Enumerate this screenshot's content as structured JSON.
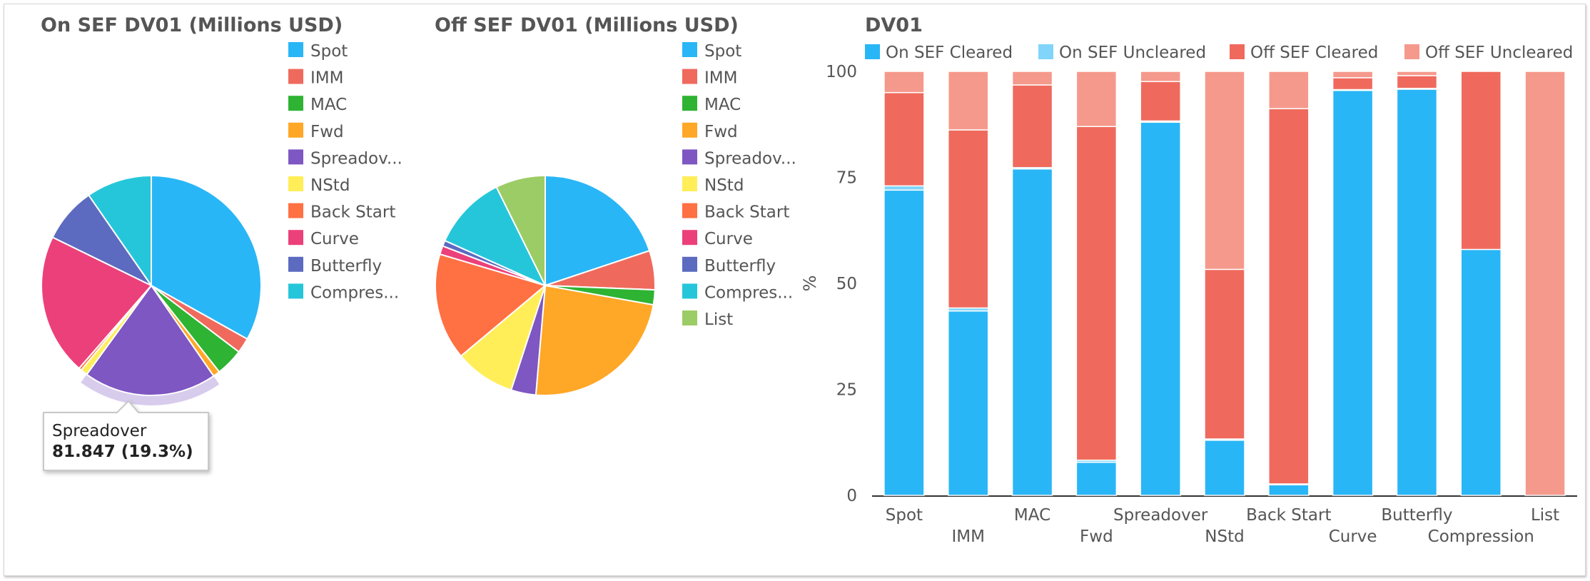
{
  "colors": {
    "Spot": "#29b6f6",
    "IMM": "#ef6a5d",
    "MAC": "#2eb333",
    "Fwd": "#ffa726",
    "Spreadover": "#7e57c2",
    "NStd": "#ffee58",
    "Back Start": "#ff7043",
    "Curve": "#ec407a",
    "Butterfly": "#5c6bc0",
    "Compression": "#26c6da",
    "List": "#9ccc65",
    "On SEF Cleared": "#29b6f6",
    "On SEF Uncleared": "#81d4fa",
    "Off SEF Cleared": "#ef6a5d",
    "Off SEF Uncleared": "#f5998c"
  },
  "on_sef": {
    "title": "On SEF DV01 (Millions USD)",
    "legend": [
      "Spot",
      "IMM",
      "MAC",
      "Fwd",
      "Spreadov...",
      "NStd",
      "Back Start",
      "Curve",
      "Butterfly",
      "Compres..."
    ],
    "tooltip": {
      "name": "Spreadover",
      "value": "81.847 (19.3%)"
    }
  },
  "off_sef": {
    "title": "Off SEF DV01 (Millions USD)",
    "legend": [
      "Spot",
      "IMM",
      "MAC",
      "Fwd",
      "Spreadov...",
      "NStd",
      "Back Start",
      "Curve",
      "Butterfly",
      "Compres...",
      "List"
    ]
  },
  "dv01": {
    "title": "DV01",
    "legend": [
      "On SEF Cleared",
      "On SEF Uncleared",
      "Off SEF Cleared",
      "Off SEF Uncleared"
    ]
  },
  "chart_data": [
    {
      "type": "pie",
      "title": "On SEF DV01 (Millions USD)",
      "categories": [
        "Spot",
        "IMM",
        "MAC",
        "Fwd",
        "Spreadover",
        "NStd",
        "Back Start",
        "Curve",
        "Butterfly",
        "Compression"
      ],
      "values": [
        32.6,
        2.2,
        4.0,
        1.0,
        19.3,
        1.0,
        0.4,
        20.5,
        8.0,
        9.5
      ],
      "highlighted": "Spreadover",
      "legend": "right"
    },
    {
      "type": "pie",
      "title": "Off SEF DV01 (Millions USD)",
      "categories": [
        "Spot",
        "IMM",
        "MAC",
        "Fwd",
        "Spreadover",
        "NStd",
        "Back Start",
        "Curve",
        "Butterfly",
        "Compression",
        "List"
      ],
      "values": [
        19.0,
        5.5,
        2.1,
        22.5,
        3.5,
        8.5,
        15.0,
        1.2,
        0.8,
        10.5,
        7.0
      ],
      "legend": "right"
    },
    {
      "type": "bar",
      "stacked": true,
      "title": "DV01",
      "ylabel": "%",
      "ylim": [
        0,
        100
      ],
      "yticks": [
        0,
        25,
        50,
        75,
        100
      ],
      "legend": "top",
      "categories": [
        "Spot",
        "IMM",
        "MAC",
        "Fwd",
        "Spreadover",
        "NStd",
        "Back Start",
        "Curve",
        "Butterfly",
        "Compression",
        "List"
      ],
      "series": [
        {
          "name": "On SEF Cleared",
          "values": [
            72.0,
            43.5,
            77.0,
            7.8,
            88.0,
            13.0,
            2.5,
            95.5,
            95.8,
            58.0,
            0.0
          ]
        },
        {
          "name": "On SEF Uncleared",
          "values": [
            1.0,
            0.7,
            0.3,
            0.5,
            0.3,
            0.3,
            0.2,
            0.2,
            0.2,
            0.0,
            0.0
          ]
        },
        {
          "name": "Off SEF Cleared",
          "values": [
            22.0,
            42.0,
            19.5,
            78.7,
            9.3,
            40.0,
            88.5,
            2.8,
            3.0,
            42.0,
            0.0
          ]
        },
        {
          "name": "Off SEF Uncleared",
          "values": [
            5.0,
            13.8,
            3.2,
            13.0,
            2.4,
            46.7,
            8.8,
            1.5,
            1.0,
            0.0,
            100.0
          ]
        }
      ]
    }
  ]
}
